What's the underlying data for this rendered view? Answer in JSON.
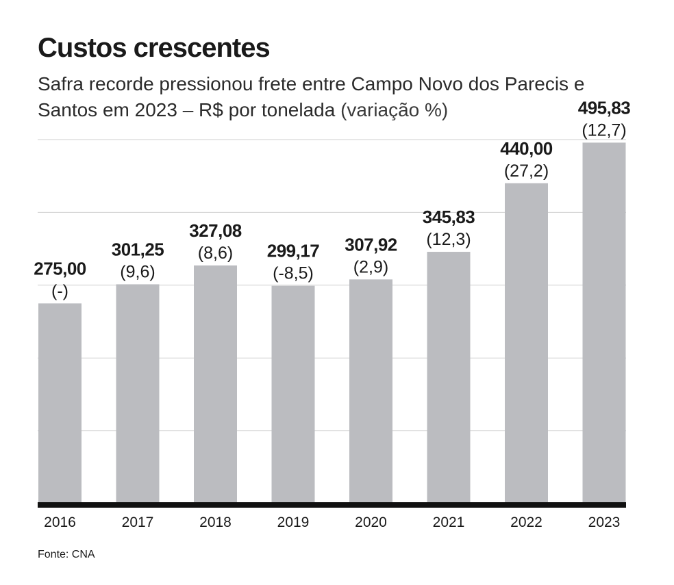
{
  "header": {
    "title": "Custos crescentes",
    "subtitle": "Safra recorde pressionou frete entre Campo Novo dos Parecis e Santos em 2023 – R$ por tonelada",
    "subtitle_suffix": "(variação %)"
  },
  "footer": {
    "source": "Fonte: CNA"
  },
  "colors": {
    "bar": "#bbbcc0",
    "baseline": "#111111",
    "grid": "#cfcfcf",
    "text": "#1a1a1a"
  },
  "chart_data": {
    "type": "bar",
    "categories": [
      "2016",
      "2017",
      "2018",
      "2019",
      "2020",
      "2021",
      "2022",
      "2023"
    ],
    "values": [
      275.0,
      301.25,
      327.08,
      299.17,
      307.92,
      345.83,
      440.0,
      495.83
    ],
    "value_labels": [
      "275,00",
      "301,25",
      "327,08",
      "299,17",
      "307,92",
      "345,83",
      "440,00",
      "495,83"
    ],
    "variation_labels": [
      "(-)",
      "(9,6)",
      "(8,6)",
      "(-8,5)",
      "(2,9)",
      "(12,3)",
      "(27,2)",
      "(12,7)"
    ],
    "ylim": [
      0,
      500
    ],
    "gridlines": [
      100,
      200,
      300,
      400,
      500
    ],
    "grid": true,
    "legend": "none"
  }
}
